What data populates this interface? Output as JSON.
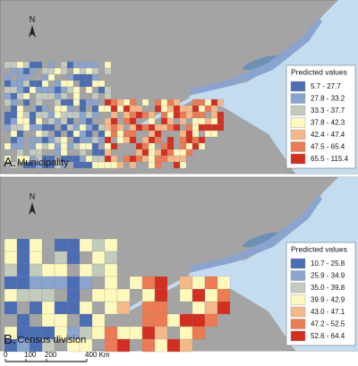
{
  "north": "N",
  "panels": [
    {
      "letter": "A.",
      "name": "Municipality",
      "legend": {
        "title": "Predicted values",
        "items": [
          {
            "label": "5.7 - 27.7",
            "color": "#4a6db4"
          },
          {
            "label": "27.8 - 33.2",
            "color": "#8aa3cf"
          },
          {
            "label": "33.3 - 37.7",
            "color": "#c3cbbd"
          },
          {
            "label": "37.8 - 42.3",
            "color": "#fdf9bd"
          },
          {
            "label": "42.4 - 47.4",
            "color": "#f5b888"
          },
          {
            "label": "47.5 - 65.4",
            "color": "#ec7a52"
          },
          {
            "label": "65.5 - 115.4",
            "color": "#d42e21"
          }
        ]
      }
    },
    {
      "letter": "B.",
      "name": "Census division",
      "legend": {
        "title": "Predicted values",
        "items": [
          {
            "label": "10.7 - 25.8",
            "color": "#4a6db4"
          },
          {
            "label": "25.9 - 34.9",
            "color": "#8aa3cf"
          },
          {
            "label": "35.0 - 39.8",
            "color": "#c3cbbd"
          },
          {
            "label": "39.9 - 42.9",
            "color": "#fdf9bd"
          },
          {
            "label": "43.0 - 47.1",
            "color": "#f5b888"
          },
          {
            "label": "47.2 - 52.5",
            "color": "#ec7a52"
          },
          {
            "label": "52.6 - 64.4",
            "color": "#d42e21"
          }
        ]
      }
    }
  ],
  "scale_bar": [
    "0",
    "100",
    "200",
    "400 Km"
  ]
}
